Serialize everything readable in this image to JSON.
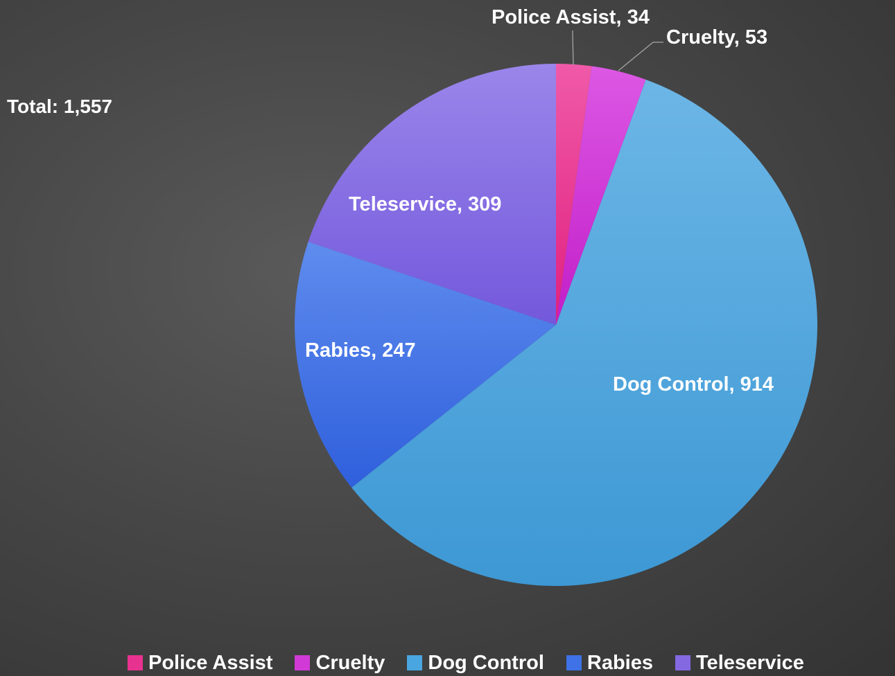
{
  "total_label": "Total: 1,557",
  "chart_data": {
    "type": "pie",
    "title": "",
    "start_angle_deg": 0,
    "direction": "clockwise",
    "legend_position": "bottom",
    "categories": [
      "Police Assist",
      "Cruelty",
      "Dog Control",
      "Rabies",
      "Teleservice"
    ],
    "values": [
      34,
      53,
      914,
      247,
      309
    ],
    "data_labels": [
      "Police Assist, 34",
      "Cruelty, 53",
      "Dog Control, 914",
      "Rabies, 247",
      "Teleservice, 309"
    ],
    "colors": [
      "#e8328f",
      "#d13ad6",
      "#4aa6e0",
      "#3e72e6",
      "#8468e2"
    ]
  }
}
